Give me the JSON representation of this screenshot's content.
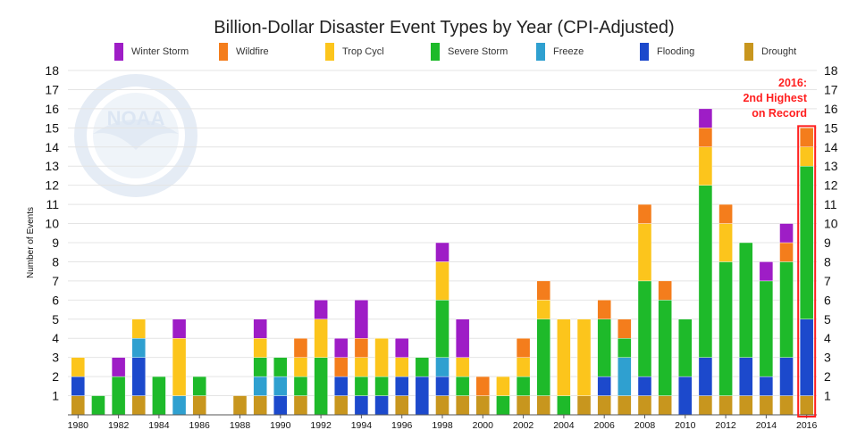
{
  "chart_data": {
    "type": "bar",
    "stacked": true,
    "title": "Billion-Dollar Disaster Event Types by Year (CPI-Adjusted)",
    "ylabel": "Number of Events",
    "xlabel": "",
    "ylim": [
      0,
      18
    ],
    "yticks": [
      1,
      2,
      3,
      4,
      5,
      6,
      7,
      8,
      9,
      10,
      11,
      12,
      13,
      14,
      15,
      16,
      17,
      18
    ],
    "grid": true,
    "legend_position": "top",
    "watermark": "NOAA",
    "categories": [
      1980,
      1981,
      1982,
      1983,
      1984,
      1985,
      1986,
      1987,
      1988,
      1989,
      1990,
      1991,
      1992,
      1993,
      1994,
      1995,
      1996,
      1997,
      1998,
      1999,
      2000,
      2001,
      2002,
      2003,
      2004,
      2005,
      2006,
      2007,
      2008,
      2009,
      2010,
      2011,
      2012,
      2013,
      2014,
      2015,
      2016
    ],
    "xtick_labels": [
      "1980",
      "1982",
      "1984",
      "1986",
      "1988",
      "1990",
      "1992",
      "1994",
      "1996",
      "1998",
      "2000",
      "2002",
      "2004",
      "2006",
      "2008",
      "2010",
      "2012",
      "2014",
      "2016"
    ],
    "series": [
      {
        "name": "Drought",
        "color": "#c8961e",
        "values": [
          1,
          0,
          0,
          1,
          0,
          0,
          1,
          0,
          1,
          1,
          0,
          1,
          0,
          1,
          0,
          0,
          1,
          0,
          1,
          1,
          1,
          0,
          1,
          1,
          0,
          1,
          1,
          1,
          1,
          1,
          0,
          1,
          1,
          1,
          1,
          1,
          1
        ]
      },
      {
        "name": "Flooding",
        "color": "#1c49cc",
        "values": [
          1,
          0,
          0,
          2,
          0,
          0,
          0,
          0,
          0,
          0,
          1,
          0,
          0,
          1,
          1,
          1,
          1,
          2,
          1,
          0,
          0,
          0,
          0,
          0,
          0,
          0,
          1,
          0,
          1,
          0,
          2,
          2,
          0,
          2,
          1,
          2,
          4
        ]
      },
      {
        "name": "Freeze",
        "color": "#2fa0d0",
        "values": [
          0,
          0,
          0,
          1,
          0,
          1,
          0,
          0,
          0,
          1,
          1,
          0,
          0,
          0,
          0,
          0,
          0,
          0,
          1,
          0,
          0,
          0,
          0,
          0,
          0,
          0,
          0,
          2,
          0,
          0,
          0,
          0,
          0,
          0,
          0,
          0,
          0
        ]
      },
      {
        "name": "Severe Storm",
        "color": "#1eba2a",
        "values": [
          0,
          1,
          2,
          0,
          2,
          0,
          1,
          0,
          0,
          1,
          1,
          1,
          3,
          0,
          1,
          1,
          0,
          1,
          3,
          1,
          0,
          1,
          1,
          4,
          1,
          0,
          3,
          1,
          5,
          5,
          3,
          9,
          7,
          6,
          5,
          5,
          8
        ]
      },
      {
        "name": "Trop Cycl",
        "color": "#fcc51c",
        "values": [
          1,
          0,
          0,
          1,
          0,
          3,
          0,
          0,
          0,
          1,
          0,
          1,
          2,
          0,
          1,
          2,
          1,
          0,
          2,
          1,
          0,
          1,
          1,
          1,
          4,
          4,
          0,
          0,
          3,
          0,
          0,
          2,
          2,
          0,
          0,
          0,
          1
        ]
      },
      {
        "name": "Wildfire",
        "color": "#f47d1c",
        "values": [
          0,
          0,
          0,
          0,
          0,
          0,
          0,
          0,
          0,
          0,
          0,
          1,
          0,
          1,
          1,
          0,
          0,
          0,
          0,
          0,
          1,
          0,
          1,
          1,
          0,
          0,
          1,
          1,
          1,
          1,
          0,
          1,
          1,
          0,
          0,
          1,
          1
        ]
      },
      {
        "name": "Winter Storm",
        "color": "#9e1dc6",
        "values": [
          0,
          0,
          1,
          0,
          0,
          1,
          0,
          0,
          0,
          1,
          0,
          0,
          1,
          1,
          2,
          0,
          1,
          0,
          1,
          2,
          0,
          0,
          0,
          0,
          0,
          0,
          0,
          0,
          0,
          0,
          0,
          1,
          0,
          0,
          1,
          1,
          0
        ]
      }
    ],
    "legend_order": [
      "Winter Storm",
      "Wildfire",
      "Trop Cycl",
      "Severe Storm",
      "Freeze",
      "Flooding",
      "Drought"
    ],
    "annotation": {
      "lines": [
        "2016:",
        "2nd Highest",
        "on Record"
      ],
      "color": "#ff1f1f",
      "highlight_category": 2016
    }
  }
}
